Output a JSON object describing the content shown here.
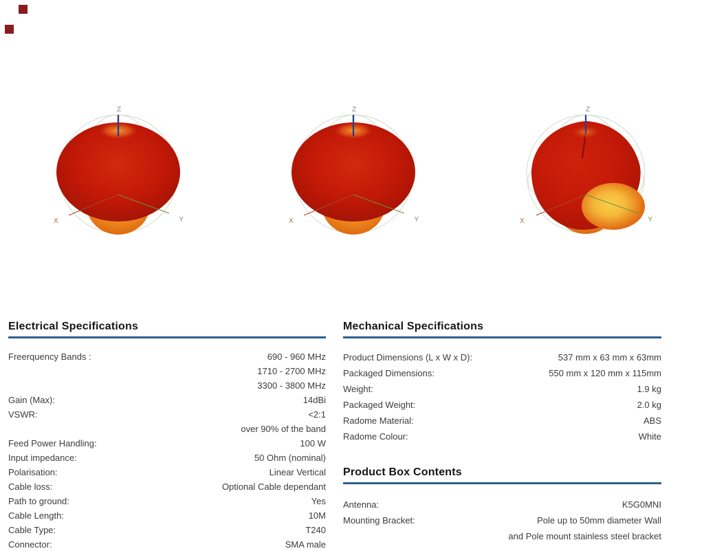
{
  "colors": {
    "rule": "#2d5f8e",
    "corner_square": "#8a1c1c",
    "plot_body_red": "#c21807",
    "plot_lobe_orange": "#f09a28",
    "plot_highlight_yellow": "#f6c23a"
  },
  "plots": [
    {
      "name": "radiation-pattern-1",
      "z_label": "Z",
      "x_label": "X",
      "y_label": "Y"
    },
    {
      "name": "radiation-pattern-2",
      "z_label": "Z",
      "x_label": "X",
      "y_label": "Y"
    },
    {
      "name": "radiation-pattern-3",
      "z_label": "Z",
      "x_label": "X",
      "y_label": "Y"
    }
  ],
  "electrical": {
    "title": "Electrical Specifications",
    "rows": [
      {
        "label": "Freerquency Bands :",
        "value": [
          "690 - 960 MHz",
          "1710 - 2700 MHz",
          "3300 - 3800 MHz"
        ]
      },
      {
        "label": "Gain (Max):",
        "value": "14dBi"
      },
      {
        "label": "VSWR:",
        "value": [
          "<2:1",
          "over 90% of the band"
        ]
      },
      {
        "label": "Feed Power Handling:",
        "value": "100 W"
      },
      {
        "label": "Input impedance:",
        "value": "50 Ohm (nominal)"
      },
      {
        "label": "Polarisation:",
        "value": "Linear Vertical"
      },
      {
        "label": "Cable loss:",
        "value": "Optional Cable dependant"
      },
      {
        "label": "Path to ground:",
        "value": "Yes"
      },
      {
        "label": "Cable Length:",
        "value": "10M"
      },
      {
        "label": "Cable Type:",
        "value": "T240"
      },
      {
        "label": "Connector:",
        "value": "SMA male"
      }
    ]
  },
  "mechanical": {
    "title": "Mechanical Specifications",
    "rows": [
      {
        "label": "Product Dimensions (L x W x D):",
        "value": "537 mm x 63 mm x 63mm"
      },
      {
        "label": "Packaged Dimensions:",
        "value": "550 mm x 120 mm x  115mm"
      },
      {
        "label": "Weight:",
        "value": "1.9 kg"
      },
      {
        "label": "Packaged Weight:",
        "value": "2.0 kg"
      },
      {
        "label": "Radome Material:",
        "value": "ABS"
      },
      {
        "label": "Radome Colour:",
        "value": "White"
      }
    ]
  },
  "box_contents": {
    "title": "Product Box Contents",
    "rows": [
      {
        "label": "Antenna:",
        "value": "K5G0MNI"
      },
      {
        "label": "Mounting Bracket:",
        "value": [
          "Pole up to 50mm diameter Wall",
          "and Pole mount stainless steel bracket"
        ]
      }
    ]
  }
}
